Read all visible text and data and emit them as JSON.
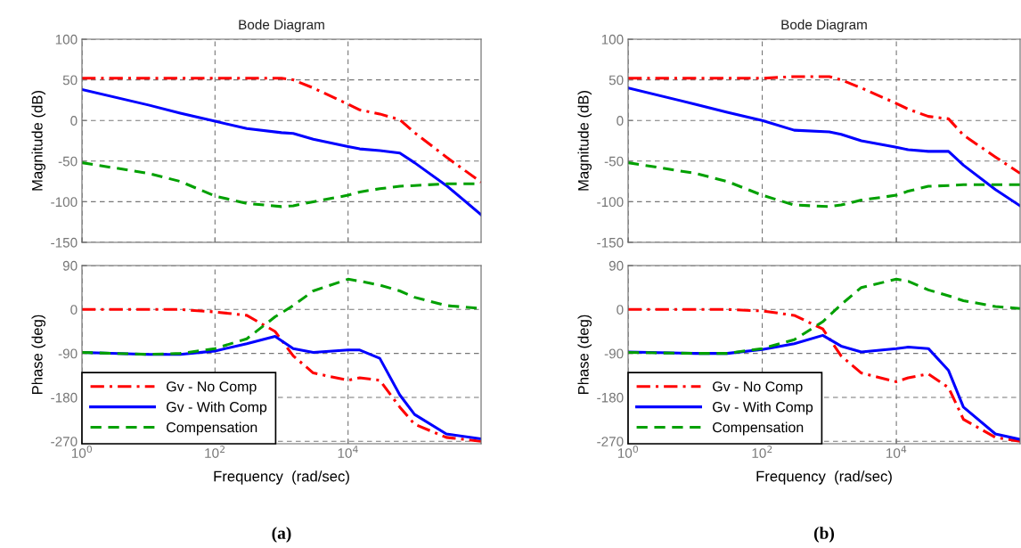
{
  "chart_data": [
    {
      "type": "line",
      "title": "Bode Diagram",
      "ylabel": "Magnitude (dB)",
      "log": "x",
      "grid": true,
      "tick_labels": "y",
      "x": [
        1,
        10,
        30,
        100,
        300,
        1000,
        1500,
        3000,
        10000,
        15000,
        30000,
        60000,
        100000,
        300000,
        1000000
      ],
      "xlim": [
        1,
        1000000
      ],
      "xticks": [
        {
          "value": 1,
          "label": null
        },
        {
          "value": 100,
          "label": null
        },
        {
          "value": 10000,
          "label": null
        }
      ],
      "ylim": [
        -150,
        100
      ],
      "yticks": [
        -150,
        -100,
        -50,
        0,
        50,
        100
      ],
      "series": [
        {
          "color": "#ff0000",
          "line_style": "dashdot",
          "values": [
            52,
            52,
            52,
            52,
            52,
            52,
            50,
            40,
            20,
            13,
            8,
            1,
            -15,
            -45,
            -76
          ]
        },
        {
          "color": "#0000ff",
          "line_style": "solid",
          "values": [
            38,
            19,
            9,
            -1,
            -10,
            -15,
            -16,
            -23,
            -32,
            -35,
            -37,
            -40,
            -52,
            -80,
            -116
          ]
        },
        {
          "color": "#00a000",
          "line_style": "dashed",
          "values": [
            -52,
            -65,
            -75,
            -93,
            -102,
            -106,
            -105,
            -100,
            -92,
            -88,
            -84,
            -81,
            -80,
            -78,
            -78
          ]
        }
      ]
    },
    {
      "type": "line",
      "xlabel": "Frequency  (rad/sec)",
      "ylabel": "Phase (deg)",
      "log": "x",
      "grid": true,
      "legend": "bottom left",
      "annotations": [
        "(a)"
      ],
      "x": [
        1,
        10,
        30,
        100,
        300,
        800,
        1500,
        3000,
        10000,
        15000,
        30000,
        60000,
        100000,
        300000,
        1000000
      ],
      "xlim": [
        1,
        1000000
      ],
      "xticks": [
        {
          "value": 1,
          "label": "10$^{0}$"
        },
        {
          "value": 100,
          "label": "10$^{2}$"
        },
        {
          "value": 10000,
          "label": "10$^{4}$"
        }
      ],
      "ylim": [
        -275,
        90
      ],
      "yticks": [
        -270,
        -180,
        -90,
        0,
        90
      ],
      "series": [
        {
          "name": "Gv - No Comp",
          "color": "#ff0000",
          "line_style": "dashdot",
          "values": [
            0,
            0,
            0,
            -5,
            -12,
            -45,
            -95,
            -130,
            -145,
            -140,
            -145,
            -200,
            -235,
            -262,
            -270
          ]
        },
        {
          "name": "Gv - With Comp",
          "color": "#0000ff",
          "line_style": "solid",
          "values": [
            -88,
            -92,
            -92,
            -85,
            -70,
            -55,
            -80,
            -88,
            -83,
            -83,
            -100,
            -175,
            -215,
            -255,
            -265
          ]
        },
        {
          "name": "Compensation",
          "color": "#00a000",
          "line_style": "dashed",
          "values": [
            -88,
            -92,
            -90,
            -80,
            -60,
            -15,
            8,
            38,
            62,
            58,
            50,
            38,
            25,
            8,
            2
          ]
        }
      ]
    },
    {
      "type": "line",
      "title": "Bode Diagram",
      "ylabel": "Magnitude (dB)",
      "log": "x",
      "grid": true,
      "tick_labels": "y",
      "x": [
        1,
        10,
        30,
        100,
        300,
        1000,
        1500,
        3000,
        10000,
        15000,
        30000,
        60000,
        100000,
        300000,
        700000
      ],
      "xlim": [
        1,
        700000
      ],
      "xticks": [
        {
          "value": 1,
          "label": null
        },
        {
          "value": 100,
          "label": null
        },
        {
          "value": 10000,
          "label": null
        }
      ],
      "ylim": [
        -150,
        100
      ],
      "yticks": [
        -150,
        -100,
        -50,
        0,
        50,
        100
      ],
      "series": [
        {
          "color": "#ff0000",
          "line_style": "dashdot",
          "values": [
            52,
            52,
            52,
            52,
            54,
            54,
            50,
            40,
            21,
            14,
            5,
            2,
            -18,
            -45,
            -65
          ]
        },
        {
          "color": "#0000ff",
          "line_style": "solid",
          "values": [
            40,
            20,
            10,
            0,
            -12,
            -14,
            -17,
            -25,
            -33,
            -36,
            -38,
            -38,
            -55,
            -85,
            -105
          ]
        },
        {
          "color": "#00a000",
          "line_style": "dashed",
          "values": [
            -52,
            -65,
            -75,
            -92,
            -104,
            -106,
            -104,
            -98,
            -92,
            -87,
            -81,
            -80,
            -79,
            -79,
            -79
          ]
        }
      ]
    },
    {
      "type": "line",
      "xlabel": "Frequency  (rad/sec)",
      "ylabel": "Phase (deg)",
      "log": "x",
      "grid": true,
      "legend": "bottom left",
      "annotations": [
        "(b)"
      ],
      "x": [
        1,
        10,
        30,
        100,
        300,
        800,
        1500,
        3000,
        10000,
        15000,
        30000,
        60000,
        100000,
        300000,
        700000
      ],
      "xlim": [
        1,
        700000
      ],
      "xticks": [
        {
          "value": 1,
          "label": "10$^{0}$"
        },
        {
          "value": 100,
          "label": "10$^{2}$"
        },
        {
          "value": 10000,
          "label": "10$^{4}$"
        }
      ],
      "ylim": [
        -275,
        90
      ],
      "yticks": [
        -270,
        -180,
        -90,
        0,
        90
      ],
      "series": [
        {
          "name": "Gv - No Comp",
          "color": "#ff0000",
          "line_style": "dashdot",
          "values": [
            0,
            0,
            0,
            -3,
            -12,
            -40,
            -95,
            -130,
            -148,
            -140,
            -132,
            -160,
            -225,
            -262,
            -270
          ]
        },
        {
          "name": "Gv - With Comp",
          "color": "#0000ff",
          "line_style": "solid",
          "values": [
            -87,
            -90,
            -90,
            -82,
            -70,
            -53,
            -75,
            -87,
            -80,
            -77,
            -80,
            -125,
            -200,
            -255,
            -266
          ]
        },
        {
          "name": "Compensation",
          "color": "#00a000",
          "line_style": "dashed",
          "values": [
            -88,
            -90,
            -90,
            -80,
            -62,
            -25,
            10,
            45,
            62,
            58,
            40,
            28,
            18,
            6,
            2
          ]
        }
      ]
    }
  ]
}
